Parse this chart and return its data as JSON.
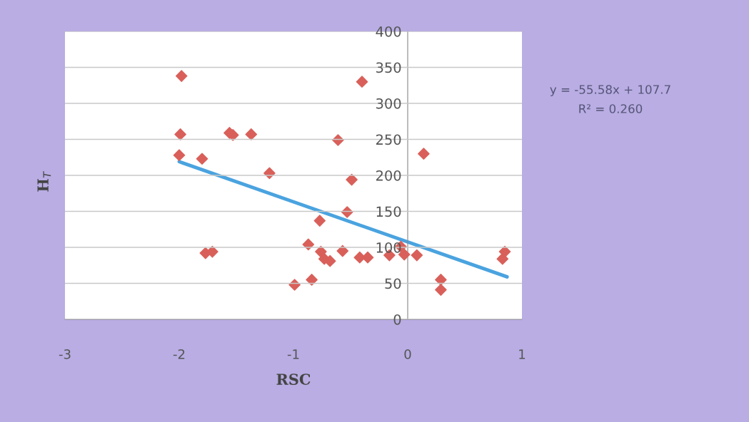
{
  "chart_data": {
    "type": "scatter",
    "xlabel": "RSC",
    "ylabel": "H$_{T}$",
    "xlim": [
      -3,
      1
    ],
    "xticks": [
      {
        "value": -3,
        "label": "-3"
      },
      {
        "value": -2,
        "label": "-2"
      },
      {
        "value": -1,
        "label": "-1"
      },
      0,
      1
    ],
    "ylim": [
      0,
      400
    ],
    "yticks": [
      0,
      50,
      100,
      150,
      200,
      250,
      300,
      350,
      400
    ],
    "grid": "y",
    "legend": false,
    "annotations": [
      "y = -55.58x + 107.7",
      "R² = 0.260"
    ],
    "series": [
      {
        "marker": "diamond",
        "color": "#d9605a",
        "x": [
          -1.98,
          -1.99,
          -2.0,
          -1.8,
          -1.56,
          -1.53,
          -1.37,
          -1.21,
          -1.77,
          -1.71,
          -0.99,
          -0.84,
          -0.87,
          -0.77,
          -0.76,
          -0.73,
          -0.68,
          -0.57,
          -0.61,
          -0.49,
          -0.53,
          -0.4,
          -0.42,
          -0.35,
          -0.16,
          -0.06,
          -0.03,
          0.08,
          0.14,
          0.29,
          0.29,
          0.83,
          0.85
        ],
        "values": [
          338,
          257,
          228,
          223,
          259,
          256,
          257,
          203,
          92,
          94,
          48,
          55,
          104,
          137,
          94,
          84,
          81,
          95,
          249,
          194,
          149,
          330,
          86,
          86,
          89,
          101,
          90,
          89,
          230,
          55,
          41,
          84,
          94
        ]
      },
      {
        "type": "line",
        "marker": "none",
        "color": "#4aa3df",
        "x": [
          -2.0,
          0.87
        ],
        "values": [
          219,
          59
        ]
      }
    ]
  }
}
